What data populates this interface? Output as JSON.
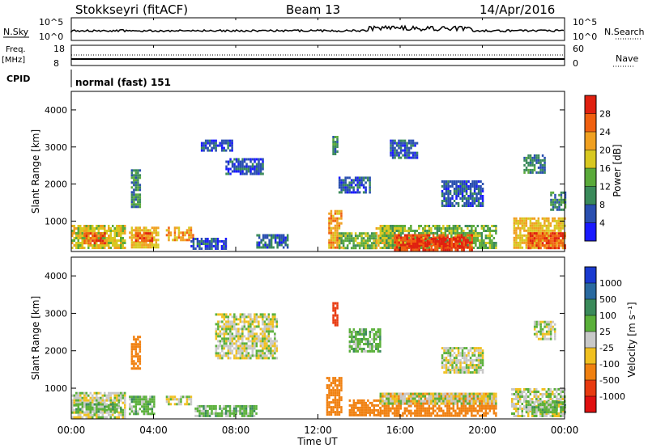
{
  "header": {
    "title": "Stokkseyri (fitACF)",
    "beam": "Beam 13",
    "date": "14/Apr/2016"
  },
  "left_labels": {
    "nsky": "N.Sky",
    "freq": "Freq.",
    "freq_unit": "[MHz]",
    "cpid": "CPID"
  },
  "right_labels": {
    "nsearch": "N.Search",
    "nave": "Nave"
  },
  "nsky_ticks": {
    "top": "10^5",
    "bottom": "10^0"
  },
  "freq_ticks": {
    "top": "18",
    "bottom": "8"
  },
  "nave_ticks": {
    "top": "60",
    "bottom": "0"
  },
  "cpid_text": "normal (fast) 151",
  "xaxis": {
    "title": "Time UT",
    "ticks": [
      "00:00",
      "04:00",
      "08:00",
      "12:00",
      "16:00",
      "20:00",
      "00:00"
    ]
  },
  "yaxis": {
    "title": "Slant Range [km]",
    "ticks": [
      "1000",
      "2000",
      "3000",
      "4000"
    ]
  },
  "power_scale": {
    "title": "Power [dB]",
    "labels": [
      "4",
      "8",
      "12",
      "16",
      "20",
      "24",
      "28"
    ],
    "colors": [
      "#1a1aff",
      "#2a4fb0",
      "#3a8a5a",
      "#5aaa3a",
      "#d8c820",
      "#f0a020",
      "#f06010",
      "#e02010"
    ]
  },
  "velocity_scale": {
    "title": "Velocity [m s⁻¹]",
    "labels": [
      "1000",
      "500",
      "100",
      "25",
      "-25",
      "-100",
      "-500",
      "-1000"
    ],
    "colors": [
      "#1a3ad0",
      "#2a6aa0",
      "#3a8a5a",
      "#5ab03a",
      "#c8c8c8",
      "#f0c020",
      "#f08010",
      "#e83a10",
      "#e01010"
    ]
  },
  "chart_data": [
    {
      "type": "heatmap",
      "name": "power",
      "x_range_hours": [
        0,
        24
      ],
      "y_range_km": [
        180,
        4500
      ],
      "colorbar": "power_scale",
      "patches": [
        {
          "t0": 0.0,
          "t1": 2.6,
          "r0": 250,
          "r1": 900,
          "v": 18
        },
        {
          "t0": 0.6,
          "t1": 1.6,
          "r0": 400,
          "r1": 700,
          "v": 26
        },
        {
          "t0": 2.8,
          "t1": 4.2,
          "r0": 300,
          "r1": 850,
          "v": 20
        },
        {
          "t0": 3.1,
          "t1": 3.9,
          "r0": 450,
          "r1": 700,
          "v": 26
        },
        {
          "t0": 2.9,
          "t1": 3.3,
          "r0": 1400,
          "r1": 2400,
          "v": 10
        },
        {
          "t0": 4.6,
          "t1": 5.9,
          "r0": 500,
          "r1": 850,
          "v": 22
        },
        {
          "t0": 5.8,
          "t1": 7.5,
          "r0": 250,
          "r1": 550,
          "v": 6
        },
        {
          "t0": 6.3,
          "t1": 7.8,
          "r0": 2900,
          "r1": 3200,
          "v": 6
        },
        {
          "t0": 7.5,
          "t1": 9.3,
          "r0": 2300,
          "r1": 2700,
          "v": 6
        },
        {
          "t0": 9.0,
          "t1": 10.5,
          "r0": 300,
          "r1": 650,
          "v": 7
        },
        {
          "t0": 12.5,
          "t1": 13.1,
          "r0": 300,
          "r1": 1300,
          "v": 22
        },
        {
          "t0": 12.7,
          "t1": 12.9,
          "r0": 2800,
          "r1": 3300,
          "v": 10
        },
        {
          "t0": 13.0,
          "t1": 14.5,
          "r0": 1800,
          "r1": 2200,
          "v": 6
        },
        {
          "t0": 13.0,
          "t1": 14.8,
          "r0": 300,
          "r1": 700,
          "v": 14
        },
        {
          "t0": 14.8,
          "t1": 16.0,
          "r0": 250,
          "r1": 900,
          "v": 20
        },
        {
          "t0": 15.0,
          "t1": 20.7,
          "r0": 300,
          "r1": 900,
          "v": 14
        },
        {
          "t0": 15.7,
          "t1": 19.5,
          "r0": 250,
          "r1": 650,
          "v": 28
        },
        {
          "t0": 16.3,
          "t1": 19.0,
          "r0": 350,
          "r1": 550,
          "v": 30
        },
        {
          "t0": 15.5,
          "t1": 16.8,
          "r0": 2700,
          "r1": 3200,
          "v": 6
        },
        {
          "t0": 18.0,
          "t1": 20.0,
          "r0": 1400,
          "r1": 2100,
          "v": 6
        },
        {
          "t0": 21.5,
          "t1": 24.0,
          "r0": 250,
          "r1": 1100,
          "v": 20
        },
        {
          "t0": 22.2,
          "t1": 24.0,
          "r0": 300,
          "r1": 700,
          "v": 27
        },
        {
          "t0": 22.0,
          "t1": 23.0,
          "r0": 2300,
          "r1": 2800,
          "v": 10
        },
        {
          "t0": 23.3,
          "t1": 24.0,
          "r0": 1300,
          "r1": 1800,
          "v": 10
        }
      ]
    },
    {
      "type": "heatmap",
      "name": "velocity",
      "x_range_hours": [
        0,
        24
      ],
      "y_range_km": [
        180,
        4500
      ],
      "colorbar": "velocity_scale",
      "patches": [
        {
          "t0": 0.0,
          "t1": 2.6,
          "r0": 250,
          "r1": 900,
          "v": 0
        },
        {
          "t0": 0.2,
          "t1": 2.4,
          "r0": 350,
          "r1": 600,
          "v": 60
        },
        {
          "t0": 2.8,
          "t1": 4.0,
          "r0": 300,
          "r1": 800,
          "v": 60
        },
        {
          "t0": 2.9,
          "t1": 3.3,
          "r0": 1500,
          "r1": 2400,
          "v": -300
        },
        {
          "t0": 4.6,
          "t1": 5.8,
          "r0": 550,
          "r1": 800,
          "v": 0
        },
        {
          "t0": 6.0,
          "t1": 9.0,
          "r0": 250,
          "r1": 550,
          "v": 60
        },
        {
          "t0": 7.0,
          "t1": 10.0,
          "r0": 1800,
          "r1": 3000,
          "v": 0
        },
        {
          "t0": 12.4,
          "t1": 13.1,
          "r0": 300,
          "r1": 1300,
          "v": -300
        },
        {
          "t0": 12.7,
          "t1": 12.9,
          "r0": 2700,
          "r1": 3300,
          "v": -600
        },
        {
          "t0": 13.5,
          "t1": 15.0,
          "r0": 300,
          "r1": 700,
          "v": -200
        },
        {
          "t0": 15.0,
          "t1": 20.7,
          "r0": 250,
          "r1": 880,
          "v": -400
        },
        {
          "t0": 15.0,
          "t1": 20.7,
          "r0": 600,
          "r1": 880,
          "v": 0
        },
        {
          "t0": 13.5,
          "t1": 15.0,
          "r0": 2000,
          "r1": 2600,
          "v": 60
        },
        {
          "t0": 18.0,
          "t1": 20.0,
          "r0": 1400,
          "r1": 2100,
          "v": 0
        },
        {
          "t0": 21.4,
          "t1": 24.0,
          "r0": 250,
          "r1": 1000,
          "v": 0
        },
        {
          "t0": 22.0,
          "t1": 24.0,
          "r0": 350,
          "r1": 650,
          "v": 60
        },
        {
          "t0": 22.5,
          "t1": 23.5,
          "r0": 2300,
          "r1": 2800,
          "v": 0
        }
      ]
    }
  ]
}
